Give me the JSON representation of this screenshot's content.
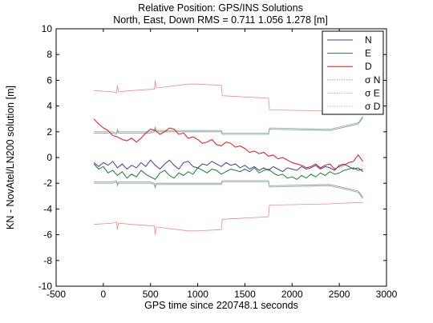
{
  "chart_data": {
    "type": "line",
    "title": "Relative Position: GPS/INS Solutions",
    "subtitle": "North, East, Down RMS = 0.711 1.056 1.278 [m]",
    "xlabel": "GPS time since 220748.1 seconds",
    "ylabel": "KN - NovAtel/LN200 solution [m]",
    "xlim": [
      -500,
      3000
    ],
    "ylim": [
      -10,
      10
    ],
    "xticks": [
      -500,
      0,
      500,
      1000,
      1500,
      2000,
      2500,
      3000
    ],
    "yticks": [
      -10,
      -8,
      -6,
      -4,
      -2,
      0,
      2,
      4,
      6,
      8,
      10
    ],
    "xtick_labels": [
      "-500",
      "0",
      "500",
      "1000",
      "1500",
      "2000",
      "2500",
      "3000"
    ],
    "ytick_labels": [
      "-10",
      "-8",
      "-6",
      "-4",
      "-2",
      "0",
      "2",
      "4",
      "6",
      "8",
      "10"
    ],
    "grid": false,
    "legend_position": "top-right",
    "series": [
      {
        "name": "N",
        "color": "#3f3fa0",
        "style": "solid",
        "x": [
          -100,
          -50,
          0,
          50,
          100,
          150,
          200,
          250,
          300,
          350,
          400,
          450,
          500,
          550,
          600,
          650,
          700,
          750,
          800,
          850,
          900,
          950,
          1000,
          1050,
          1100,
          1150,
          1200,
          1250,
          1300,
          1350,
          1400,
          1450,
          1500,
          1550,
          1600,
          1650,
          1700,
          1750,
          1800,
          1850,
          1900,
          1950,
          2000,
          2050,
          2100,
          2150,
          2200,
          2250,
          2300,
          2350,
          2400,
          2450,
          2500,
          2550,
          2600,
          2650,
          2700,
          2750
        ],
        "y": [
          -0.4,
          -0.7,
          -0.4,
          -0.6,
          -0.3,
          -0.8,
          -0.5,
          -0.9,
          -0.6,
          -0.8,
          -0.4,
          -0.7,
          -0.2,
          -0.6,
          -0.9,
          -0.5,
          -0.2,
          -0.6,
          -0.9,
          -0.4,
          -0.3,
          -0.7,
          -0.8,
          -0.5,
          -0.6,
          -0.3,
          -0.5,
          -0.7,
          -0.4,
          -0.6,
          -0.5,
          -0.8,
          -0.6,
          -0.9,
          -0.7,
          -1.0,
          -0.8,
          -1.0,
          -0.7,
          -0.9,
          -1.1,
          -0.8,
          -0.9,
          -1.0,
          -0.7,
          -0.9,
          -0.8,
          -0.6,
          -0.9,
          -0.7,
          -0.8,
          -1.0,
          -0.6,
          -0.5,
          -0.7,
          -0.9,
          -0.8,
          -1.1
        ]
      },
      {
        "name": "E",
        "color": "#1e7a2e",
        "style": "solid",
        "x": [
          -100,
          -50,
          0,
          50,
          100,
          150,
          200,
          250,
          300,
          350,
          400,
          450,
          500,
          550,
          600,
          650,
          700,
          750,
          800,
          850,
          900,
          950,
          1000,
          1050,
          1100,
          1150,
          1200,
          1250,
          1300,
          1350,
          1400,
          1450,
          1500,
          1550,
          1600,
          1650,
          1700,
          1750,
          1800,
          1850,
          1900,
          1950,
          2000,
          2050,
          2100,
          2150,
          2200,
          2250,
          2300,
          2350,
          2400,
          2450,
          2500,
          2550,
          2600,
          2650,
          2700,
          2750
        ],
        "y": [
          -0.5,
          -0.9,
          -0.7,
          -1.2,
          -1.0,
          -1.4,
          -1.1,
          -1.6,
          -1.3,
          -1.5,
          -1.0,
          -1.3,
          -1.5,
          -1.7,
          -1.2,
          -1.0,
          -1.4,
          -1.6,
          -1.2,
          -1.4,
          -1.1,
          -1.3,
          -0.8,
          -1.0,
          -1.2,
          -0.9,
          -1.0,
          -1.3,
          -1.1,
          -0.9,
          -1.0,
          -1.1,
          -0.9,
          -1.1,
          -0.8,
          -1.2,
          -1.0,
          -0.9,
          -1.2,
          -1.4,
          -1.3,
          -1.6,
          -1.5,
          -1.7,
          -1.4,
          -1.6,
          -1.3,
          -1.5,
          -1.2,
          -1.4,
          -1.1,
          -1.3,
          -1.2,
          -1.0,
          -0.9,
          -0.8,
          -1.0,
          -0.9
        ]
      },
      {
        "name": "D",
        "color": "#e41414",
        "style": "solid",
        "x": [
          -100,
          -50,
          0,
          50,
          100,
          150,
          200,
          250,
          300,
          350,
          400,
          450,
          500,
          550,
          600,
          650,
          700,
          750,
          800,
          850,
          900,
          950,
          1000,
          1050,
          1100,
          1150,
          1200,
          1250,
          1300,
          1350,
          1400,
          1450,
          1500,
          1550,
          1600,
          1650,
          1700,
          1750,
          1800,
          1850,
          1900,
          1950,
          2000,
          2050,
          2100,
          2150,
          2200,
          2250,
          2300,
          2350,
          2400,
          2450,
          2500,
          2550,
          2600,
          2650,
          2700,
          2750
        ],
        "y": [
          3.0,
          2.6,
          2.3,
          2.1,
          1.7,
          1.6,
          1.4,
          1.3,
          1.5,
          1.2,
          1.5,
          1.9,
          2.2,
          2.1,
          1.8,
          2.0,
          2.3,
          2.2,
          1.8,
          1.9,
          1.5,
          1.6,
          1.4,
          1.1,
          1.2,
          1.4,
          1.0,
          0.9,
          1.2,
          1.1,
          0.8,
          0.9,
          0.7,
          0.4,
          0.5,
          0.3,
          0.4,
          0.1,
          0.2,
          -0.1,
          0.0,
          -0.2,
          -0.4,
          -0.5,
          -0.6,
          -0.8,
          -0.7,
          -0.5,
          -0.8,
          -0.6,
          -0.5,
          -0.9,
          -0.7,
          -0.6,
          -0.4,
          -0.3,
          0.2,
          -0.3
        ]
      },
      {
        "name": "σ N",
        "color": "#8a8ab8",
        "style": "dotted",
        "x": [
          -100,
          100,
          140,
          150,
          160,
          500,
          540,
          550,
          560,
          1000,
          1250,
          1260,
          1750,
          1760,
          2400,
          2700,
          2750
        ],
        "y": [
          1.9,
          1.9,
          1.8,
          2.1,
          1.9,
          1.9,
          2.0,
          2.3,
          2.0,
          2.0,
          2.0,
          1.8,
          1.8,
          2.2,
          2.1,
          2.6,
          3.1
        ]
      },
      {
        "name": "σ E",
        "color": "#7fb48a",
        "style": "dotted",
        "x": [
          -100,
          100,
          140,
          150,
          160,
          500,
          540,
          550,
          560,
          1000,
          1250,
          1260,
          1750,
          1760,
          2400,
          2700,
          2750
        ],
        "y": [
          2.0,
          2.0,
          1.9,
          2.2,
          2.0,
          2.0,
          2.1,
          2.4,
          2.1,
          2.1,
          2.1,
          1.9,
          1.9,
          2.3,
          2.2,
          2.7,
          3.2
        ]
      },
      {
        "name": "σ D",
        "color": "#f08a8a",
        "style": "dotted",
        "x": [
          -100,
          100,
          140,
          150,
          160,
          300,
          500,
          540,
          550,
          560,
          900,
          1000,
          1250,
          1260,
          1750,
          1760,
          2400,
          2700,
          2750
        ],
        "y": [
          5.2,
          5.1,
          5.0,
          5.6,
          5.1,
          5.2,
          5.3,
          5.3,
          6.0,
          5.4,
          5.7,
          5.7,
          5.6,
          4.8,
          4.6,
          3.7,
          3.6,
          3.5,
          3.5
        ]
      }
    ]
  },
  "legend": {
    "entries": [
      {
        "label": "N",
        "color": "#3f3fa0"
      },
      {
        "label": "E",
        "color": "#1e7a2e"
      },
      {
        "label": "D",
        "color": "#e41414"
      },
      {
        "label": "σ N",
        "color": "#8a8ab8"
      },
      {
        "label": "σ E",
        "color": "#7fb48a"
      },
      {
        "label": "σ D",
        "color": "#f08a8a"
      }
    ]
  }
}
